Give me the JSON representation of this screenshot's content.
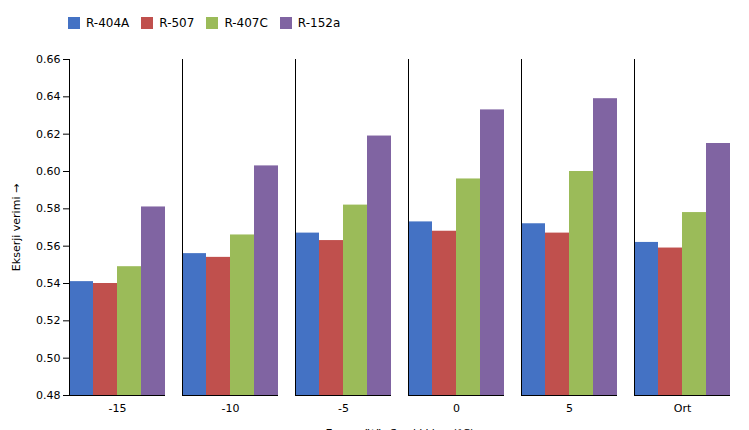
{
  "chart_data": {
    "type": "bar",
    "xlabel": "Evaparütör Sıcaklıkları (°C)",
    "ylabel": "Ekserji verimi",
    "categories": [
      "-15",
      "-10",
      "-5",
      "0",
      "5",
      "Ort"
    ],
    "series": [
      {
        "name": "R-404A",
        "color": "#4472C4",
        "values": [
          0.541,
          0.556,
          0.567,
          0.573,
          0.572,
          0.562
        ]
      },
      {
        "name": "R-507",
        "color": "#C0504D",
        "values": [
          0.54,
          0.554,
          0.563,
          0.568,
          0.567,
          0.559
        ]
      },
      {
        "name": "R-407C",
        "color": "#9BBB59",
        "values": [
          0.549,
          0.566,
          0.582,
          0.596,
          0.6,
          0.578
        ]
      },
      {
        "name": "R-152a",
        "color": "#8064A2",
        "values": [
          0.581,
          0.603,
          0.619,
          0.633,
          0.639,
          0.615
        ]
      }
    ],
    "ylim": [
      0.48,
      0.66
    ],
    "yticks": [
      0.48,
      {
        "value": 0.5,
        "label": "0.50"
      },
      0.52,
      0.54,
      0.56,
      0.58,
      {
        "value": 0.6,
        "label": "0.60"
      },
      0.62,
      0.64,
      0.66
    ],
    "legend": "upper left",
    "grid": false
  }
}
